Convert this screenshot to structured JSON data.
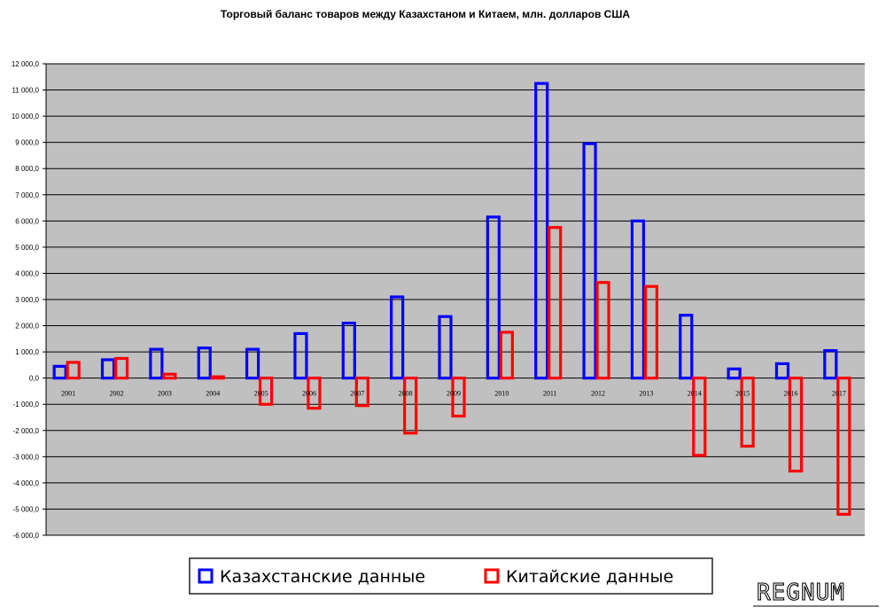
{
  "chart_data": {
    "type": "bar",
    "title": "Торговый баланс товаров между Казахстаном и Китаем, млн. долларов США",
    "xlabel": "",
    "ylabel": "",
    "categories": [
      "2001",
      "2002",
      "2003",
      "2004",
      "2005",
      "2006",
      "2007",
      "2008",
      "2009",
      "2010",
      "2011",
      "2012",
      "2013",
      "2014",
      "2015",
      "2016",
      "2017"
    ],
    "ylim": [
      -6000,
      12000
    ],
    "yticks": [
      12000,
      11000,
      10000,
      9000,
      8000,
      7000,
      6000,
      5000,
      4000,
      3000,
      2000,
      1000,
      0,
      -1000,
      -2000,
      -3000,
      -4000,
      -5000,
      -6000
    ],
    "ytick_labels": [
      "12 000,0",
      "11 000,0",
      "10 000,0",
      "9 000,0",
      "8 000,0",
      "7 000,0",
      "6 000,0",
      "5 000,0",
      "4 000,0",
      "3 000,0",
      "2 000,0",
      "1 000,0",
      "0,0",
      "-1 000,0",
      "-2 000,0",
      "-3 000,0",
      "-4 000,0",
      "-5 000,0",
      "-6 000,0"
    ],
    "grid": true,
    "legend_position": "bottom",
    "series": [
      {
        "name": "Казахстанские данные",
        "color": "#0000ff",
        "values": [
          450,
          700,
          1100,
          1150,
          1100,
          1700,
          2100,
          3100,
          2350,
          6150,
          11250,
          8950,
          6000,
          2400,
          350,
          550,
          1050
        ]
      },
      {
        "name": "Китайские данные",
        "color": "#ff0000",
        "values": [
          600,
          750,
          150,
          50,
          -1000,
          -1150,
          -1050,
          -2100,
          -1450,
          1750,
          5750,
          3650,
          3500,
          -2950,
          -2600,
          -3550,
          -5200
        ]
      }
    ]
  },
  "watermark": {
    "text": "REGNUM"
  },
  "colors": {
    "plot_bg": "#c0c0c0",
    "grid": "#000000"
  }
}
